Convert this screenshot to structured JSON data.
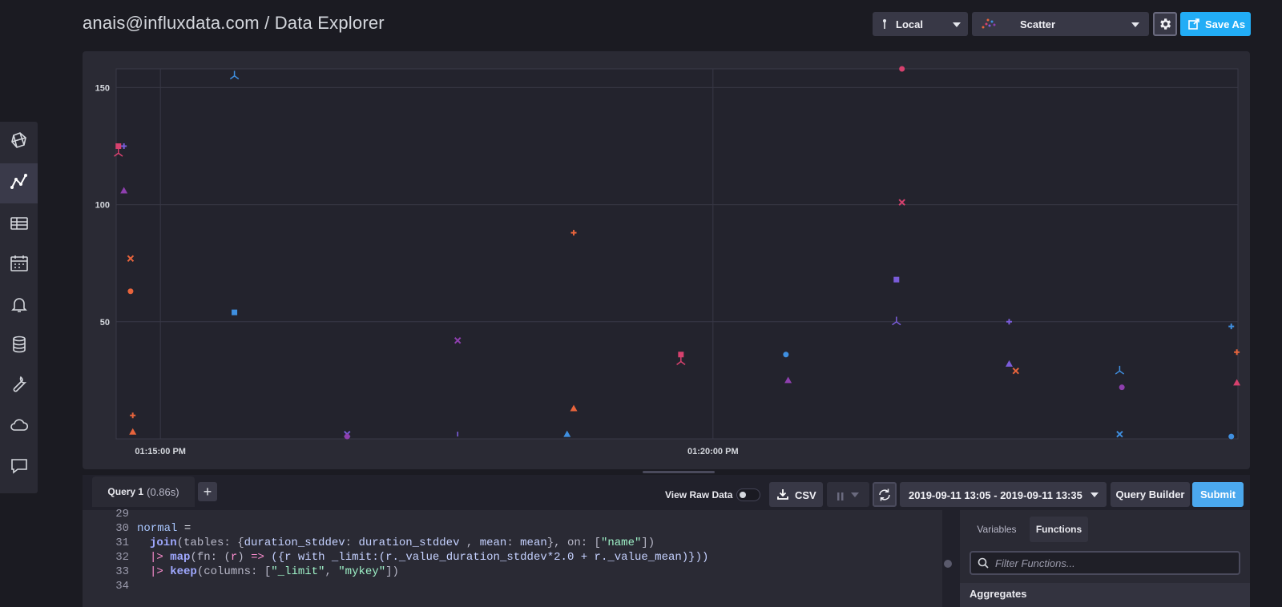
{
  "header": {
    "title": "anais@influxdata.com / Data Explorer"
  },
  "toolbar": {
    "source_label": "Local",
    "vis_label": "Scatter",
    "save_label": "Save As"
  },
  "query": {
    "tab_label": "Query 1",
    "tab_time": "(0.86s)",
    "add_label": "+",
    "view_raw_label": "View Raw Data",
    "csv_label": "CSV",
    "time_range": "2019-09-11 13:05 - 2019-09-11 13:35",
    "builder_label": "Query Builder",
    "submit_label": "Submit"
  },
  "editor": {
    "line_numbers": [
      "29",
      "30",
      "31",
      "32",
      "33",
      "34"
    ],
    "line30": {
      "kw": "normal",
      "op": " ="
    },
    "line31": {
      "fn": "join",
      "p1": "(tables: {",
      "k1": "duration_stddev",
      "p2": ": ",
      "v1": "duration_stddev",
      "p3": " , ",
      "k2": "mean",
      "p4": ": ",
      "v2": "mean",
      "p5": "}, on: [",
      "s1": "\"name\"",
      "p6": "])"
    },
    "line32": {
      "pipe": "|>",
      "fn": "map",
      "p1": "(fn: (",
      "arg": "r",
      "p2": ") ",
      "arrow": "=>",
      "p3": " ({r with _limit:(r._value_duration_stddev*2.0 + r._value_mean)}))"
    },
    "line33": {
      "pipe": "|>",
      "fn": "keep",
      "p1": "(columns: [",
      "s1": "\"_limit\"",
      "p2": ", ",
      "s2": "\"mykey\"",
      "p3": "])"
    }
  },
  "side_panel": {
    "tab_variables": "Variables",
    "tab_functions": "Functions",
    "filter_placeholder": "Filter Functions...",
    "section": "Aggregates"
  },
  "chart_data": {
    "type": "scatter",
    "x_ticks": [
      "01:15:00 PM",
      "01:20:00 PM"
    ],
    "y_ticks": [
      50,
      100,
      150
    ],
    "ylim": [
      0,
      158
    ],
    "xlim_minutes": [
      -0.4,
      9.75
    ],
    "grid": true,
    "points": [
      {
        "x": -0.38,
        "y": 125,
        "shape": "square",
        "color": "#d6416e"
      },
      {
        "x": -0.38,
        "y": 122,
        "shape": "tripod",
        "color": "#d6416e"
      },
      {
        "x": -0.33,
        "y": 125,
        "shape": "plus",
        "color": "#7a5cd9"
      },
      {
        "x": -0.33,
        "y": 106,
        "shape": "triangle",
        "color": "#8e3fae"
      },
      {
        "x": -0.27,
        "y": 77,
        "shape": "x",
        "color": "#e8643c"
      },
      {
        "x": -0.27,
        "y": 63,
        "shape": "circle",
        "color": "#e8643c"
      },
      {
        "x": -0.25,
        "y": 10,
        "shape": "plus",
        "color": "#e8643c"
      },
      {
        "x": -0.25,
        "y": 3,
        "shape": "triangle",
        "color": "#e8643c"
      },
      {
        "x": 0.67,
        "y": 155,
        "shape": "tripod",
        "color": "#3f8fe0"
      },
      {
        "x": 0.67,
        "y": 54,
        "shape": "square",
        "color": "#3f8fe0"
      },
      {
        "x": 1.69,
        "y": 2,
        "shape": "x",
        "color": "#7a5cd9"
      },
      {
        "x": 1.69,
        "y": 1,
        "shape": "circle",
        "color": "#8e3fae"
      },
      {
        "x": 2.69,
        "y": 42,
        "shape": "x",
        "color": "#8e3fae"
      },
      {
        "x": 2.69,
        "y": 1,
        "shape": "bar",
        "color": "#7a5cd9"
      },
      {
        "x": 3.68,
        "y": 2,
        "shape": "triangle",
        "color": "#3f8fe0"
      },
      {
        "x": 3.74,
        "y": 88,
        "shape": "plus",
        "color": "#e8643c"
      },
      {
        "x": 3.74,
        "y": 13,
        "shape": "triangle",
        "color": "#e8643c"
      },
      {
        "x": 4.71,
        "y": 36,
        "shape": "square",
        "color": "#d6416e"
      },
      {
        "x": 4.71,
        "y": 33,
        "shape": "tripod",
        "color": "#d6416e"
      },
      {
        "x": 5.66,
        "y": 36,
        "shape": "circle",
        "color": "#3f8fe0"
      },
      {
        "x": 5.68,
        "y": 25,
        "shape": "triangle",
        "color": "#8e3fae"
      },
      {
        "x": 6.71,
        "y": 158,
        "shape": "circle",
        "color": "#d6416e"
      },
      {
        "x": 6.71,
        "y": 101,
        "shape": "x",
        "color": "#d6416e"
      },
      {
        "x": 6.66,
        "y": 68,
        "shape": "square",
        "color": "#7a5cd9"
      },
      {
        "x": 6.66,
        "y": 50,
        "shape": "tripod",
        "color": "#7a5cd9"
      },
      {
        "x": 7.68,
        "y": 50,
        "shape": "plus",
        "color": "#7a5cd9"
      },
      {
        "x": 7.68,
        "y": 32,
        "shape": "triangle",
        "color": "#7a5cd9"
      },
      {
        "x": 7.74,
        "y": 29,
        "shape": "x",
        "color": "#e8643c"
      },
      {
        "x": 8.68,
        "y": 29,
        "shape": "tripod",
        "color": "#3f8fe0"
      },
      {
        "x": 8.7,
        "y": 22,
        "shape": "circle",
        "color": "#8e3fae"
      },
      {
        "x": 8.68,
        "y": 2,
        "shape": "x",
        "color": "#3f8fe0"
      },
      {
        "x": 9.69,
        "y": 48,
        "shape": "plus",
        "color": "#3f8fe0"
      },
      {
        "x": 9.69,
        "y": 1,
        "shape": "circle",
        "color": "#3f8fe0"
      },
      {
        "x": 9.74,
        "y": 37,
        "shape": "plus",
        "color": "#e8643c"
      },
      {
        "x": 9.74,
        "y": 24,
        "shape": "triangle",
        "color": "#d6416e"
      }
    ]
  }
}
